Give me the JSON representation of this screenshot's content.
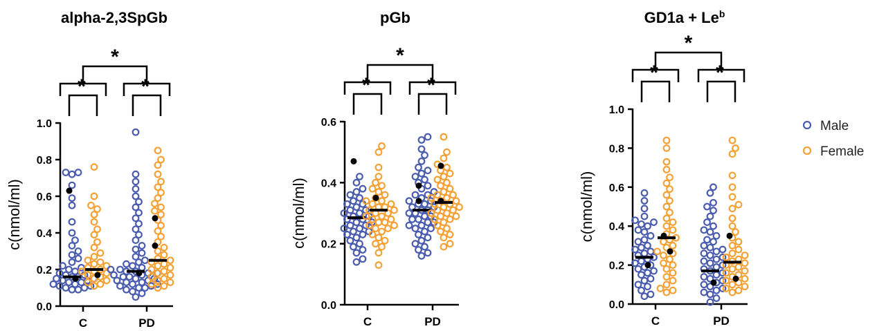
{
  "colors": {
    "male": "#4a5cb0",
    "female": "#f5a135",
    "highlight": "#000000",
    "median": "#000000"
  },
  "legend": [
    {
      "key": "male",
      "label": "Male"
    },
    {
      "key": "female",
      "label": "Female"
    }
  ],
  "chart_data": [
    {
      "type": "scatter",
      "title": "alpha-2,3SpGb",
      "title_sup": "",
      "xlabel": "",
      "ylabel": "c(nmol/ml)",
      "ylim": [
        0,
        1.0
      ],
      "yticks": [
        "0.0",
        "0.2",
        "0.4",
        "0.6",
        "0.8",
        "1.0"
      ],
      "categories": [
        "C",
        "PD"
      ],
      "significance": {
        "inner": [
          "*",
          "*"
        ],
        "outer": "*"
      },
      "groups": [
        {
          "category": "C",
          "sex": "male",
          "median": 0.16,
          "highlighted": [
            0.63,
            0.15
          ],
          "values": [
            0.73,
            0.73,
            0.72,
            0.66,
            0.59,
            0.55,
            0.46,
            0.4,
            0.36,
            0.33,
            0.3,
            0.28,
            0.26,
            0.24,
            0.22,
            0.21,
            0.2,
            0.19,
            0.18,
            0.17,
            0.17,
            0.16,
            0.16,
            0.15,
            0.15,
            0.14,
            0.14,
            0.13,
            0.13,
            0.12,
            0.12,
            0.11,
            0.11,
            0.1,
            0.1,
            0.09,
            0.09
          ]
        },
        {
          "category": "C",
          "sex": "female",
          "median": 0.2,
          "highlighted": [
            0.17
          ],
          "values": [
            0.76,
            0.6,
            0.55,
            0.53,
            0.5,
            0.46,
            0.42,
            0.39,
            0.35,
            0.32,
            0.29,
            0.27,
            0.25,
            0.24,
            0.23,
            0.22,
            0.21,
            0.2,
            0.19,
            0.19,
            0.18,
            0.17,
            0.16,
            0.15,
            0.14,
            0.13,
            0.12,
            0.11
          ]
        },
        {
          "category": "PD",
          "sex": "male",
          "median": 0.19,
          "highlighted": [
            0.18
          ],
          "values": [
            0.95,
            0.72,
            0.68,
            0.64,
            0.6,
            0.57,
            0.54,
            0.51,
            0.48,
            0.45,
            0.42,
            0.39,
            0.36,
            0.33,
            0.31,
            0.29,
            0.27,
            0.25,
            0.24,
            0.23,
            0.22,
            0.21,
            0.2,
            0.2,
            0.19,
            0.19,
            0.18,
            0.18,
            0.17,
            0.17,
            0.16,
            0.16,
            0.15,
            0.15,
            0.14,
            0.14,
            0.13,
            0.13,
            0.12,
            0.12,
            0.11,
            0.11,
            0.1,
            0.1,
            0.09,
            0.08,
            0.07,
            0.05
          ]
        },
        {
          "category": "PD",
          "sex": "female",
          "median": 0.25,
          "highlighted": [
            0.48,
            0.33
          ],
          "values": [
            0.85,
            0.8,
            0.77,
            0.72,
            0.68,
            0.65,
            0.62,
            0.59,
            0.56,
            0.54,
            0.52,
            0.5,
            0.47,
            0.44,
            0.41,
            0.38,
            0.35,
            0.32,
            0.3,
            0.28,
            0.26,
            0.25,
            0.24,
            0.23,
            0.22,
            0.21,
            0.2,
            0.19,
            0.18,
            0.17,
            0.16,
            0.15,
            0.14,
            0.13,
            0.12,
            0.11,
            0.1
          ]
        }
      ]
    },
    {
      "type": "scatter",
      "title": "pGb",
      "title_sup": "",
      "xlabel": "",
      "ylabel": "c(nmol/ml)",
      "ylim": [
        0,
        0.6
      ],
      "yticks": [
        "0.0",
        "0.2",
        "0.4",
        "0.6"
      ],
      "categories": [
        "C",
        "PD"
      ],
      "significance": {
        "inner": [
          "*",
          "*"
        ],
        "outer": "*"
      },
      "groups": [
        {
          "category": "C",
          "sex": "male",
          "median": 0.285,
          "highlighted": [
            0.47
          ],
          "values": [
            0.42,
            0.4,
            0.38,
            0.37,
            0.36,
            0.35,
            0.34,
            0.33,
            0.33,
            0.32,
            0.31,
            0.31,
            0.3,
            0.3,
            0.29,
            0.29,
            0.28,
            0.28,
            0.27,
            0.27,
            0.26,
            0.26,
            0.25,
            0.25,
            0.24,
            0.24,
            0.23,
            0.23,
            0.22,
            0.21,
            0.2,
            0.19,
            0.18,
            0.17,
            0.15,
            0.14
          ]
        },
        {
          "category": "C",
          "sex": "female",
          "median": 0.31,
          "highlighted": [
            0.35
          ],
          "values": [
            0.52,
            0.5,
            0.45,
            0.42,
            0.4,
            0.39,
            0.38,
            0.37,
            0.36,
            0.35,
            0.34,
            0.34,
            0.33,
            0.33,
            0.32,
            0.32,
            0.31,
            0.31,
            0.3,
            0.3,
            0.29,
            0.29,
            0.28,
            0.28,
            0.27,
            0.27,
            0.26,
            0.26,
            0.25,
            0.25,
            0.24,
            0.23,
            0.22,
            0.21,
            0.2,
            0.19,
            0.17,
            0.13
          ]
        },
        {
          "category": "PD",
          "sex": "male",
          "median": 0.31,
          "highlighted": [
            0.39,
            0.34
          ],
          "values": [
            0.55,
            0.54,
            0.51,
            0.49,
            0.47,
            0.45,
            0.44,
            0.43,
            0.42,
            0.41,
            0.4,
            0.39,
            0.38,
            0.37,
            0.36,
            0.36,
            0.35,
            0.34,
            0.34,
            0.33,
            0.33,
            0.32,
            0.32,
            0.31,
            0.31,
            0.3,
            0.3,
            0.29,
            0.29,
            0.28,
            0.28,
            0.27,
            0.27,
            0.26,
            0.26,
            0.25,
            0.25,
            0.24,
            0.23,
            0.22,
            0.21,
            0.2,
            0.19,
            0.18,
            0.17,
            0.16
          ]
        },
        {
          "category": "PD",
          "sex": "female",
          "median": 0.335,
          "highlighted": [
            0.455,
            0.34
          ],
          "values": [
            0.55,
            0.5,
            0.48,
            0.46,
            0.45,
            0.44,
            0.43,
            0.42,
            0.41,
            0.4,
            0.39,
            0.38,
            0.37,
            0.36,
            0.36,
            0.35,
            0.35,
            0.34,
            0.34,
            0.33,
            0.33,
            0.32,
            0.32,
            0.31,
            0.31,
            0.3,
            0.3,
            0.29,
            0.29,
            0.28,
            0.28,
            0.27,
            0.26,
            0.25,
            0.24,
            0.23,
            0.22,
            0.2,
            0.19
          ]
        }
      ]
    },
    {
      "type": "scatter",
      "title": "GD1a + Le",
      "title_sup": "b",
      "xlabel": "",
      "ylabel": "c(nmol/ml)",
      "ylim": [
        0,
        1.0
      ],
      "yticks": [
        "0.0",
        "0.2",
        "0.4",
        "0.6",
        "0.8",
        "1.0"
      ],
      "categories": [
        "C",
        "PD"
      ],
      "significance": {
        "inner": [
          "*",
          "*"
        ],
        "outer": "*"
      },
      "groups": [
        {
          "category": "C",
          "sex": "male",
          "median": 0.24,
          "highlighted": [
            0.2
          ],
          "values": [
            0.57,
            0.53,
            0.49,
            0.45,
            0.43,
            0.42,
            0.41,
            0.4,
            0.38,
            0.37,
            0.35,
            0.33,
            0.32,
            0.3,
            0.29,
            0.28,
            0.27,
            0.26,
            0.25,
            0.24,
            0.23,
            0.22,
            0.21,
            0.2,
            0.19,
            0.18,
            0.17,
            0.16,
            0.15,
            0.13,
            0.12,
            0.1,
            0.09,
            0.07,
            0.05,
            0.04
          ]
        },
        {
          "category": "C",
          "sex": "female",
          "median": 0.34,
          "highlighted": [
            0.35,
            0.27
          ],
          "values": [
            0.84,
            0.8,
            0.73,
            0.69,
            0.65,
            0.62,
            0.59,
            0.56,
            0.53,
            0.5,
            0.47,
            0.44,
            0.42,
            0.4,
            0.38,
            0.36,
            0.34,
            0.33,
            0.32,
            0.3,
            0.29,
            0.27,
            0.26,
            0.25,
            0.23,
            0.21,
            0.2,
            0.18,
            0.16,
            0.14,
            0.12,
            0.1,
            0.08,
            0.07,
            0.06
          ]
        },
        {
          "category": "PD",
          "sex": "male",
          "median": 0.17,
          "highlighted": [
            0.11
          ],
          "values": [
            0.6,
            0.57,
            0.52,
            0.5,
            0.48,
            0.45,
            0.42,
            0.4,
            0.38,
            0.37,
            0.35,
            0.33,
            0.32,
            0.3,
            0.29,
            0.28,
            0.27,
            0.26,
            0.25,
            0.24,
            0.23,
            0.22,
            0.21,
            0.2,
            0.19,
            0.18,
            0.17,
            0.16,
            0.15,
            0.14,
            0.13,
            0.12,
            0.11,
            0.1,
            0.09,
            0.08,
            0.07,
            0.06,
            0.05,
            0.03,
            0.01
          ]
        },
        {
          "category": "PD",
          "sex": "female",
          "median": 0.215,
          "highlighted": [
            0.35,
            0.13
          ],
          "values": [
            0.84,
            0.8,
            0.77,
            0.66,
            0.6,
            0.55,
            0.51,
            0.49,
            0.44,
            0.4,
            0.37,
            0.34,
            0.32,
            0.3,
            0.28,
            0.26,
            0.25,
            0.24,
            0.23,
            0.22,
            0.21,
            0.2,
            0.19,
            0.18,
            0.17,
            0.16,
            0.15,
            0.14,
            0.13,
            0.12,
            0.11,
            0.1,
            0.09,
            0.08,
            0.07,
            0.06
          ]
        }
      ]
    }
  ]
}
